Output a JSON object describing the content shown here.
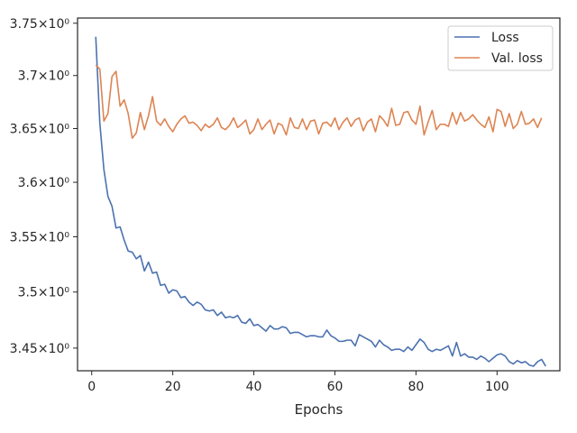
{
  "chart_data": {
    "type": "line",
    "xlabel": "Epochs",
    "ylabel": "",
    "xlim": [
      -3.5,
      115.5
    ],
    "ylim": [
      3.43,
      3.755
    ],
    "yscale": "log",
    "x_ticks": [
      0,
      20,
      40,
      60,
      80,
      100
    ],
    "x_tick_labels": [
      "0",
      "20",
      "40",
      "60",
      "80",
      "100"
    ],
    "y_ticks": [
      3.45,
      3.5,
      3.55,
      3.6,
      3.65,
      3.7,
      3.75
    ],
    "y_tick_labels": [
      "3.45×10⁰",
      "3.5×10⁰",
      "3.55×10⁰",
      "3.6×10⁰",
      "3.65×10⁰",
      "3.7×10⁰",
      "3.75×10⁰"
    ],
    "grid": false,
    "legend_position": "top-right",
    "x_start": 1,
    "series": [
      {
        "name": "Loss",
        "color": "#4c72b0",
        "values": [
          3.737,
          3.655,
          3.612,
          3.587,
          3.578,
          3.558,
          3.559,
          3.547,
          3.537,
          3.536,
          3.53,
          3.533,
          3.519,
          3.527,
          3.517,
          3.518,
          3.506,
          3.507,
          3.499,
          3.502,
          3.501,
          3.495,
          3.496,
          3.491,
          3.488,
          3.491,
          3.489,
          3.484,
          3.483,
          3.484,
          3.479,
          3.482,
          3.477,
          3.478,
          3.477,
          3.479,
          3.473,
          3.472,
          3.476,
          3.47,
          3.471,
          3.468,
          3.465,
          3.47,
          3.467,
          3.467,
          3.469,
          3.468,
          3.463,
          3.464,
          3.464,
          3.462,
          3.46,
          3.461,
          3.461,
          3.46,
          3.46,
          3.466,
          3.461,
          3.459,
          3.456,
          3.456,
          3.457,
          3.457,
          3.452,
          3.462,
          3.46,
          3.458,
          3.456,
          3.451,
          3.457,
          3.453,
          3.451,
          3.448,
          3.449,
          3.449,
          3.447,
          3.451,
          3.448,
          3.453,
          3.458,
          3.455,
          3.449,
          3.447,
          3.449,
          3.448,
          3.45,
          3.452,
          3.443,
          3.455,
          3.443,
          3.445,
          3.442,
          3.442,
          3.44,
          3.443,
          3.441,
          3.438,
          3.441,
          3.444,
          3.445,
          3.443,
          3.438,
          3.436,
          3.439,
          3.437,
          3.438,
          3.435,
          3.434,
          3.438,
          3.44,
          3.434
        ]
      },
      {
        "name": "Val. loss",
        "color": "#dd8452",
        "values": [
          3.71,
          3.706,
          3.657,
          3.664,
          3.699,
          3.704,
          3.671,
          3.677,
          3.664,
          3.641,
          3.646,
          3.665,
          3.649,
          3.662,
          3.68,
          3.657,
          3.653,
          3.659,
          3.652,
          3.647,
          3.654,
          3.659,
          3.662,
          3.655,
          3.656,
          3.653,
          3.648,
          3.654,
          3.651,
          3.654,
          3.66,
          3.651,
          3.649,
          3.653,
          3.66,
          3.651,
          3.654,
          3.658,
          3.645,
          3.649,
          3.659,
          3.649,
          3.654,
          3.658,
          3.645,
          3.655,
          3.653,
          3.644,
          3.66,
          3.651,
          3.65,
          3.659,
          3.649,
          3.657,
          3.658,
          3.645,
          3.655,
          3.656,
          3.652,
          3.66,
          3.649,
          3.656,
          3.66,
          3.652,
          3.658,
          3.66,
          3.648,
          3.656,
          3.659,
          3.647,
          3.662,
          3.658,
          3.652,
          3.669,
          3.653,
          3.654,
          3.665,
          3.666,
          3.658,
          3.654,
          3.671,
          3.644,
          3.656,
          3.667,
          3.649,
          3.654,
          3.654,
          3.652,
          3.665,
          3.654,
          3.665,
          3.657,
          3.659,
          3.663,
          3.658,
          3.654,
          3.651,
          3.661,
          3.647,
          3.668,
          3.666,
          3.652,
          3.664,
          3.65,
          3.654,
          3.666,
          3.654,
          3.655,
          3.659,
          3.651,
          3.66
        ]
      }
    ]
  }
}
